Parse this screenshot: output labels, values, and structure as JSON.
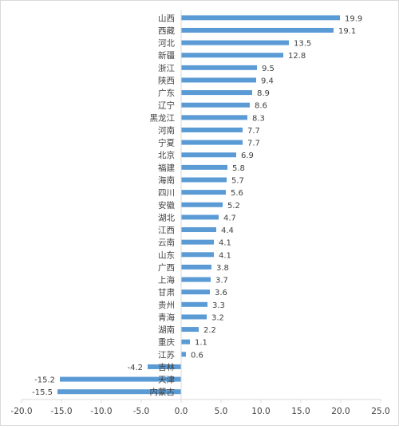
{
  "chart_data": {
    "type": "bar",
    "orientation": "horizontal",
    "title": "",
    "xlabel": "",
    "ylabel": "",
    "categories": [
      "山西",
      "西藏",
      "河北",
      "新疆",
      "浙江",
      "陕西",
      "广东",
      "辽宁",
      "黑龙江",
      "河南",
      "宁夏",
      "北京",
      "福建",
      "海南",
      "四川",
      "安徽",
      "湖北",
      "江西",
      "云南",
      "山东",
      "广西",
      "上海",
      "甘肃",
      "贵州",
      "青海",
      "湖南",
      "重庆",
      "江苏",
      "吉林",
      "天津",
      "内蒙古"
    ],
    "values": [
      19.9,
      19.1,
      13.5,
      12.8,
      9.5,
      9.4,
      8.9,
      8.6,
      8.3,
      7.7,
      7.7,
      6.9,
      5.8,
      5.7,
      5.6,
      5.2,
      4.7,
      4.4,
      4.1,
      4.1,
      3.8,
      3.7,
      3.6,
      3.3,
      3.2,
      2.2,
      1.1,
      0.6,
      -4.2,
      -15.2,
      -15.5
    ],
    "xlim": [
      -20,
      25
    ],
    "xticks": [
      "-20.0",
      "-15.0",
      "-10.0",
      "-5.0",
      "0.0",
      "5.0",
      "10.0",
      "15.0",
      "20.0",
      "25.0"
    ],
    "grid": false,
    "legend": "none",
    "data_labels": true,
    "bar_color": "#5b9bd5",
    "axis_color": "#d9d9d9"
  }
}
